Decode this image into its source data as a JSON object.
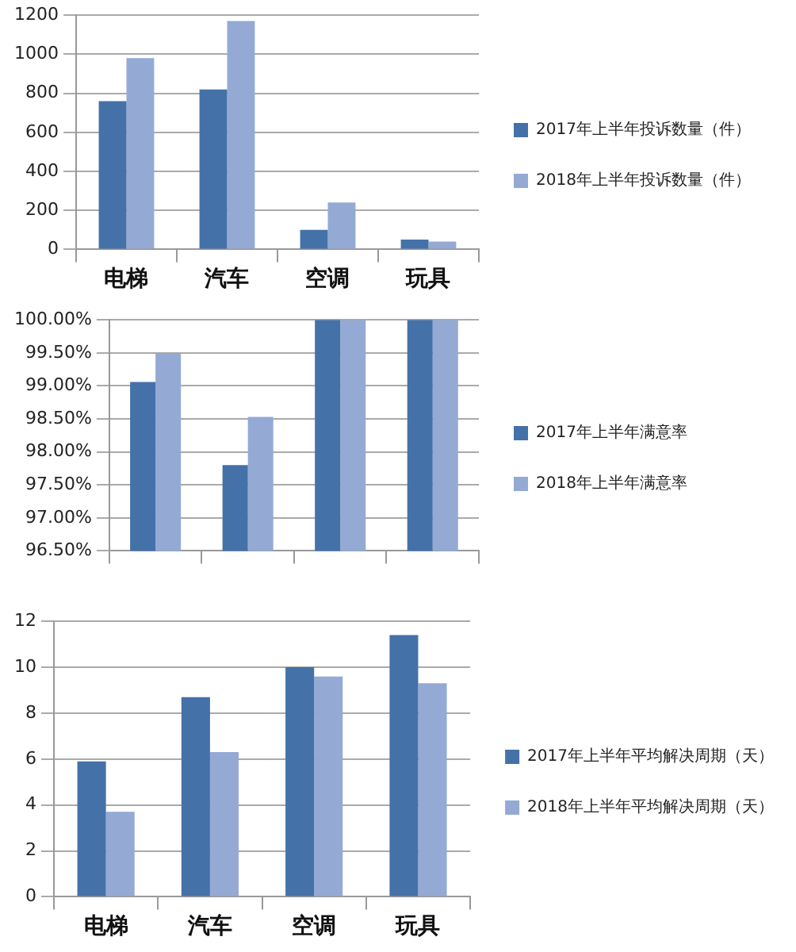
{
  "chart_data": [
    {
      "type": "bar",
      "categories": [
        "电梯",
        "汽车",
        "空调",
        "玩具"
      ],
      "series": [
        {
          "name": "2017年上半年投诉数量（件）",
          "color": "#4571a9",
          "values": [
            760,
            820,
            100,
            50
          ]
        },
        {
          "name": "2018年上半年投诉数量（件）",
          "color": "#94aad4",
          "values": [
            980,
            1170,
            240,
            40
          ]
        }
      ],
      "ylim": [
        0,
        1200
      ],
      "yticks": [
        0,
        200,
        400,
        600,
        800,
        1000,
        1200
      ],
      "grid": "y",
      "legend": "right"
    },
    {
      "type": "bar",
      "categories": [
        null,
        null,
        null,
        null
      ],
      "series": [
        {
          "name": "2017年上半年满意率",
          "color": "#4571a9",
          "values": [
            99.06,
            97.8,
            100,
            100
          ]
        },
        {
          "name": "2018年上半年满意率",
          "color": "#94aad4",
          "values": [
            99.49,
            98.53,
            100,
            100
          ]
        }
      ],
      "ylim": [
        96.5,
        100
      ],
      "yticks": [
        {
          "value": 96.5,
          "label": "96.50%"
        },
        {
          "value": 97,
          "label": "97.00%"
        },
        {
          "value": 97.5,
          "label": "97.50%"
        },
        {
          "value": 98,
          "label": "98.00%"
        },
        {
          "value": 98.5,
          "label": "98.50%"
        },
        {
          "value": 99,
          "label": "99.00%"
        },
        {
          "value": 99.5,
          "label": "99.50%"
        },
        {
          "value": 100,
          "label": "100.00%"
        }
      ],
      "grid": "y",
      "legend": "right"
    },
    {
      "type": "bar",
      "categories": [
        "电梯",
        "汽车",
        "空调",
        "玩具"
      ],
      "series": [
        {
          "name": "2017年上半年平均解决周期（天）",
          "color": "#4571a9",
          "values": [
            5.9,
            8.7,
            10.0,
            11.4
          ]
        },
        {
          "name": "2018年上半年平均解决周期（天）",
          "color": "#94aad4",
          "values": [
            3.7,
            6.3,
            9.6,
            9.3
          ]
        }
      ],
      "ylim": [
        0,
        12
      ],
      "yticks": [
        0,
        2,
        4,
        6,
        8,
        10,
        12
      ],
      "grid": "y",
      "legend": "right"
    }
  ]
}
